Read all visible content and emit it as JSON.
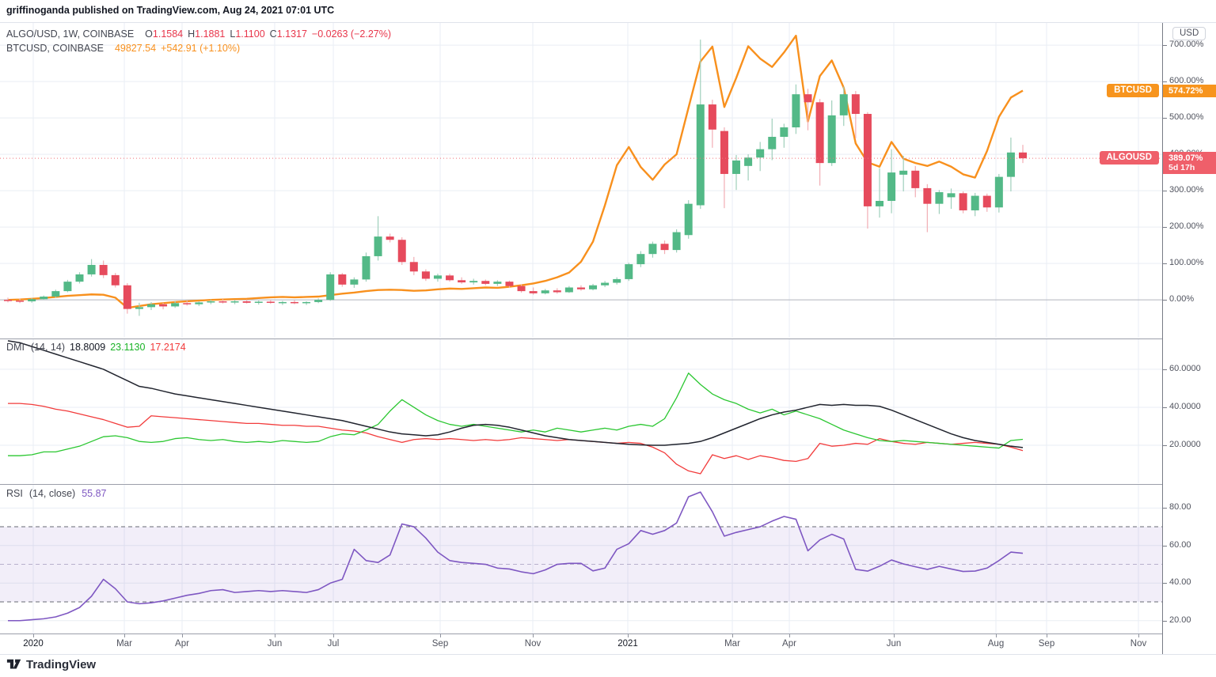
{
  "header": {
    "published_line": "griffinoganda published on TradingView.com, Aug 24, 2021 07:01 UTC"
  },
  "legend": {
    "main": {
      "title": "ALGO/USD, 1W, COINBASE",
      "ohlc": [
        [
          "O",
          "1.1584"
        ],
        [
          "H",
          "1.1881"
        ],
        [
          "L",
          "1.1100"
        ],
        [
          "C",
          "1.1317"
        ]
      ],
      "change": "−0.0263 (−2.27%)"
    },
    "btc": {
      "title": "BTCUSD, COINBASE",
      "value": "49827.54",
      "change": "+542.91 (+1.10%)"
    },
    "dmi": {
      "name": "DMI",
      "params": "(14, 14)",
      "adx": "18.8009",
      "plus": "23.1130",
      "minus": "17.2174"
    },
    "rsi": {
      "name": "RSI",
      "params": "(14, close)",
      "value": "55.87"
    }
  },
  "axis": {
    "currency_badge": "USD",
    "main_ticks": [
      [
        700,
        "700.00%"
      ],
      [
        600,
        "600.00%"
      ],
      [
        500,
        "500.00%"
      ],
      [
        400,
        "400.00%"
      ],
      [
        300,
        "300.00%"
      ],
      [
        200,
        "200.00%"
      ],
      [
        100,
        "100.00%"
      ],
      [
        0,
        "0.00%"
      ]
    ],
    "dmi_ticks": [
      [
        60,
        "60.0000"
      ],
      [
        40,
        "40.0000"
      ],
      [
        20,
        "20.0000"
      ]
    ],
    "rsi_ticks": [
      [
        80,
        "80.00"
      ],
      [
        60,
        "60.00"
      ],
      [
        40,
        "40.00"
      ],
      [
        20,
        "20.00"
      ]
    ],
    "btc_badge": {
      "name": "BTCUSD",
      "value": "574.72%"
    },
    "algo_badge": {
      "name": "ALGOUSD",
      "value": "389.07%",
      "countdown": "5d 17h"
    }
  },
  "time_axis": {
    "ticks": [
      [
        42,
        "2020"
      ],
      [
        157,
        "Mar"
      ],
      [
        230,
        "Apr"
      ],
      [
        347,
        "Jun"
      ],
      [
        421,
        "Jul"
      ],
      [
        556,
        "Sep"
      ],
      [
        673,
        "Nov"
      ],
      [
        793,
        "2021"
      ],
      [
        925,
        "Mar"
      ],
      [
        997,
        "Apr"
      ],
      [
        1129,
        "Jun"
      ],
      [
        1258,
        "Aug"
      ],
      [
        1322,
        "Sep"
      ],
      [
        1438,
        "Nov"
      ]
    ]
  },
  "footer": {
    "brand": "TradingView"
  },
  "colors": {
    "up": "#53b987",
    "down": "#e64a5c",
    "up_wick": "#9fcfbb",
    "down_wick": "#f2adb4",
    "btc_line": "#f8901d",
    "last_price_line": "#f0707b",
    "adx": "#21242e",
    "plus_di": "#2bc731",
    "minus_di": "#f23b3b",
    "rsi": "#7e57c2",
    "rsi_band": "rgba(126,87,194,0.10)",
    "rsi_dash": "#676a73",
    "rsi_mid_dash": "#b8b0cc",
    "grid": "#e9eef4",
    "zero_line": "#b2b5be",
    "badge_btc_bg": "#f7941d",
    "badge_algo_bg": "#ef5f6a"
  },
  "chart_data": [
    {
      "type": "candlestick",
      "symbol": "ALGO/USD",
      "interval": "1W",
      "exchange": "COINBASE",
      "scale": "percent-change",
      "ylim": [
        -104,
        761
      ],
      "grid_pct": [
        0,
        100,
        200,
        300,
        400,
        500,
        600,
        700
      ],
      "last_value": 389.07,
      "candles": [
        [
          0,
          6,
          -7,
          -2
        ],
        [
          -2,
          4,
          -9,
          -4
        ],
        [
          -4,
          5,
          -8,
          2
        ],
        [
          2,
          12,
          0,
          9
        ],
        [
          9,
          28,
          6,
          24
        ],
        [
          24,
          55,
          21,
          50
        ],
        [
          50,
          76,
          45,
          70
        ],
        [
          70,
          112,
          64,
          96
        ],
        [
          96,
          108,
          60,
          68
        ],
        [
          68,
          74,
          34,
          40
        ],
        [
          40,
          46,
          -38,
          -25
        ],
        [
          -25,
          -8,
          -44,
          -20
        ],
        [
          -20,
          -6,
          -28,
          -12
        ],
        [
          -12,
          -8,
          -26,
          -18
        ],
        [
          -18,
          -4,
          -22,
          -9
        ],
        [
          -9,
          -2,
          -16,
          -12
        ],
        [
          -12,
          -4,
          -17,
          -7
        ],
        [
          -7,
          1,
          -12,
          -4
        ],
        [
          -4,
          2,
          -10,
          -7
        ],
        [
          -7,
          0,
          -12,
          -4
        ],
        [
          -4,
          1,
          -10,
          -8
        ],
        [
          -8,
          -2,
          -13,
          -5
        ],
        [
          -5,
          0,
          -11,
          -8
        ],
        [
          -8,
          -3,
          -14,
          -6
        ],
        [
          -6,
          -1,
          -12,
          -9
        ],
        [
          -9,
          -4,
          -14,
          -6
        ],
        [
          -6,
          4,
          -9,
          0
        ],
        [
          0,
          76,
          -3,
          70
        ],
        [
          70,
          74,
          36,
          42
        ],
        [
          42,
          62,
          33,
          56
        ],
        [
          56,
          130,
          50,
          120
        ],
        [
          120,
          230,
          108,
          174
        ],
        [
          174,
          182,
          158,
          165
        ],
        [
          165,
          172,
          96,
          104
        ],
        [
          104,
          118,
          68,
          78
        ],
        [
          78,
          84,
          52,
          58
        ],
        [
          58,
          72,
          50,
          67
        ],
        [
          67,
          72,
          50,
          54
        ],
        [
          54,
          62,
          44,
          48
        ],
        [
          48,
          58,
          42,
          52
        ],
        [
          52,
          56,
          40,
          44
        ],
        [
          44,
          54,
          38,
          50
        ],
        [
          50,
          53,
          34,
          38
        ],
        [
          38,
          42,
          20,
          24
        ],
        [
          24,
          34,
          14,
          18
        ],
        [
          18,
          30,
          15,
          26
        ],
        [
          26,
          32,
          17,
          21
        ],
        [
          21,
          38,
          19,
          34
        ],
        [
          34,
          40,
          25,
          29
        ],
        [
          29,
          44,
          26,
          40
        ],
        [
          40,
          52,
          35,
          47
        ],
        [
          47,
          62,
          42,
          57
        ],
        [
          57,
          102,
          52,
          98
        ],
        [
          98,
          134,
          90,
          126
        ],
        [
          126,
          160,
          116,
          154
        ],
        [
          154,
          163,
          126,
          137
        ],
        [
          137,
          194,
          130,
          186
        ],
        [
          178,
          274,
          168,
          264
        ],
        [
          260,
          715,
          250,
          537
        ],
        [
          537,
          550,
          418,
          468
        ],
        [
          464,
          474,
          252,
          346
        ],
        [
          346,
          398,
          302,
          383
        ],
        [
          368,
          400,
          328,
          391
        ],
        [
          391,
          434,
          354,
          414
        ],
        [
          414,
          498,
          384,
          448
        ],
        [
          448,
          484,
          418,
          474
        ],
        [
          474,
          592,
          456,
          565
        ],
        [
          565,
          580,
          466,
          543
        ],
        [
          543,
          552,
          314,
          376
        ],
        [
          376,
          548,
          368,
          507
        ],
        [
          507,
          586,
          478,
          565
        ],
        [
          565,
          574,
          444,
          511
        ],
        [
          511,
          516,
          196,
          257
        ],
        [
          257,
          362,
          226,
          272
        ],
        [
          272,
          414,
          238,
          350
        ],
        [
          344,
          396,
          298,
          355
        ],
        [
          355,
          368,
          282,
          307
        ],
        [
          307,
          318,
          186,
          264
        ],
        [
          264,
          302,
          236,
          296
        ],
        [
          282,
          306,
          250,
          293
        ],
        [
          293,
          298,
          238,
          246
        ],
        [
          246,
          294,
          230,
          286
        ],
        [
          286,
          292,
          242,
          254
        ],
        [
          254,
          346,
          240,
          338
        ],
        [
          338,
          446,
          298,
          405
        ],
        [
          405,
          426,
          376,
          389
        ]
      ],
      "overlay": {
        "symbol": "BTCUSD",
        "exchange": "COINBASE",
        "last_value": 574.72,
        "values": [
          0,
          1,
          3,
          5,
          8,
          11,
          13,
          15,
          14,
          6,
          -22,
          -17,
          -12,
          -9,
          -6,
          -4,
          -2,
          0,
          1,
          2,
          3,
          5,
          7,
          8,
          7,
          8,
          9,
          13,
          17,
          20,
          24,
          27,
          28,
          27,
          25,
          26,
          29,
          31,
          30,
          32,
          34,
          33,
          36,
          40,
          45,
          52,
          62,
          75,
          105,
          160,
          260,
          370,
          420,
          365,
          330,
          372,
          400,
          528,
          655,
          696,
          530,
          610,
          697,
          663,
          640,
          680,
          726,
          490,
          615,
          658,
          583,
          430,
          378,
          366,
          434,
          388,
          376,
          368,
          380,
          366,
          345,
          336,
          409,
          503,
          556,
          575
        ]
      }
    },
    {
      "type": "line",
      "name": "DMI (14, 14)",
      "ylim": [
        0,
        75.8
      ],
      "grid": [
        20,
        40,
        60
      ],
      "series": [
        {
          "name": "ADX",
          "value": 18.8009,
          "color_key": "adx",
          "values": [
            75,
            74,
            72,
            70,
            68,
            66,
            64,
            62,
            60,
            57,
            54,
            51,
            50,
            48.5,
            47,
            46,
            45,
            44,
            43,
            42,
            41,
            40,
            39,
            38,
            37,
            36,
            35,
            34,
            33,
            31.5,
            30,
            28.5,
            27,
            26,
            25.5,
            25,
            25.5,
            27,
            29,
            30.5,
            31,
            30.5,
            29.5,
            28,
            26.5,
            25,
            24,
            23,
            22.5,
            22,
            21.5,
            21,
            20.5,
            20.2,
            20,
            20,
            20.5,
            21,
            22,
            24,
            26.5,
            29,
            31.5,
            34,
            36,
            37.5,
            38.5,
            40,
            41.5,
            41,
            41.5,
            41,
            41,
            40.5,
            38.5,
            36,
            33.5,
            31,
            28.5,
            26,
            24,
            22.5,
            21.5,
            20.5,
            19.5,
            18.8
          ]
        },
        {
          "name": "+DI",
          "value": 23.113,
          "color_key": "plus_di",
          "values": [
            14.5,
            14.5,
            15,
            16.5,
            16.5,
            18,
            19.5,
            22,
            24.5,
            25,
            24,
            22,
            21.5,
            22,
            23.5,
            24,
            23,
            22.5,
            23,
            22,
            21.5,
            22,
            21.5,
            22.5,
            22,
            21.5,
            22,
            24.5,
            26,
            25.5,
            28,
            31,
            38,
            44,
            40,
            36,
            33,
            31,
            30,
            31,
            30,
            29,
            28,
            27,
            28,
            27,
            29,
            28,
            27,
            28,
            29,
            28,
            30,
            31,
            30,
            34,
            45,
            58,
            52,
            47,
            44,
            42,
            39,
            37,
            39,
            36,
            38,
            36,
            34,
            31,
            28,
            26,
            24,
            22.5,
            22,
            22.5,
            22,
            21.5,
            21,
            20.5,
            20,
            19.5,
            19,
            18.5,
            22.5,
            23.1
          ]
        },
        {
          "name": "-DI",
          "value": 17.2174,
          "color_key": "minus_di",
          "values": [
            42,
            42,
            41.5,
            40.5,
            39,
            38,
            36.5,
            35,
            33.5,
            31.5,
            29.5,
            30,
            35.5,
            35,
            34.5,
            34,
            33.5,
            33,
            32.5,
            32,
            31.5,
            31.5,
            31,
            30.5,
            30.5,
            30,
            30,
            29,
            28,
            27.5,
            26.5,
            24.5,
            23,
            21.5,
            23,
            23.5,
            23,
            23.5,
            23,
            22.5,
            23,
            22.5,
            23,
            24,
            23.5,
            23,
            22.5,
            23,
            22.5,
            22,
            21.5,
            21,
            21.5,
            21,
            19,
            16,
            10,
            6.5,
            5,
            15,
            13,
            14.5,
            12.5,
            14.5,
            13.5,
            12,
            11.5,
            13,
            21,
            19.5,
            20,
            21,
            20.5,
            23.5,
            22,
            21,
            20.5,
            21.5,
            21,
            20.5,
            21,
            21.5,
            21,
            20.5,
            19,
            17.2
          ]
        }
      ]
    },
    {
      "type": "line",
      "name": "RSI (14, close)",
      "ylim": [
        13.15,
        92.35
      ],
      "grid": [
        20,
        40,
        60,
        80
      ],
      "band": [
        30,
        70
      ],
      "dashed": [
        30,
        50,
        70
      ],
      "series": [
        {
          "name": "RSI",
          "value": 55.87,
          "color_key": "rsi",
          "values": [
            20,
            20,
            20.5,
            21,
            22,
            24,
            27,
            33,
            42,
            37,
            30,
            29,
            29.5,
            30.5,
            32,
            33.5,
            34.5,
            36,
            36.5,
            35,
            35.5,
            36,
            35.5,
            36,
            35.5,
            35,
            36.5,
            40,
            42,
            58,
            52,
            51,
            55,
            71.5,
            70,
            64,
            56.5,
            52,
            51,
            50.5,
            50,
            48,
            47.5,
            46,
            45,
            47,
            50,
            50.5,
            50.5,
            46.5,
            48,
            58,
            61,
            68,
            66,
            68,
            72,
            86,
            88.5,
            78,
            65,
            67,
            68.5,
            70,
            73,
            75.5,
            74,
            57.2,
            63,
            66,
            63.5,
            47.3,
            46.4,
            49,
            52.3,
            50.2,
            48.7,
            47.3,
            48.9,
            47.5,
            46.2,
            46.4,
            48,
            52,
            56.5,
            55.87
          ]
        }
      ]
    }
  ]
}
